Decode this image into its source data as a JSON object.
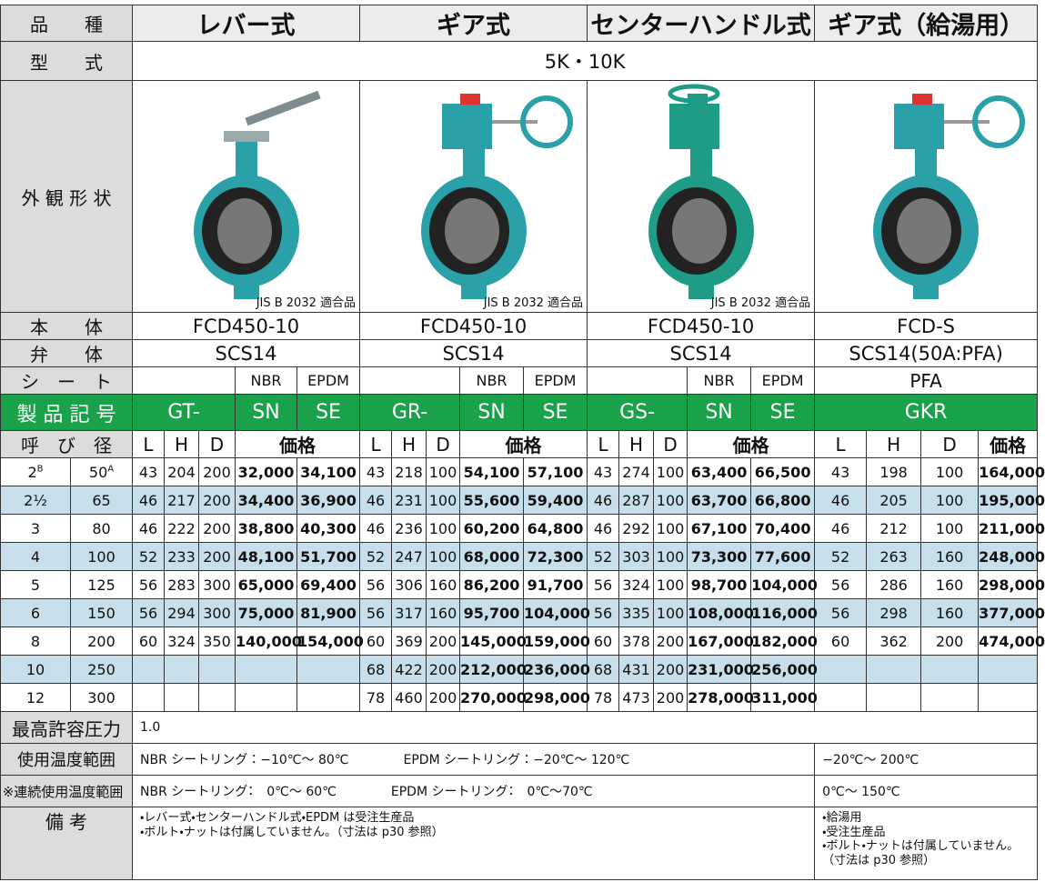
{
  "table": {
    "header": {
      "label": "品　　種",
      "groups": [
        "レバー式",
        "ギア式",
        "センターハンドル式",
        "ギア式（給湯用）"
      ]
    },
    "model": {
      "label": "型　　式",
      "value": "5K・10K"
    },
    "appearance": {
      "label": "外 観 形 状",
      "notes": [
        "JIS B 2032 適合品",
        "JIS B 2032 適合品",
        "JIS B 2032 適合品"
      ]
    },
    "body": {
      "label": "本　　体",
      "values": [
        "FCD450-10",
        "FCD450-10",
        "FCD450-10",
        "FCD-S"
      ]
    },
    "disc": {
      "label": "弁　　体",
      "values": [
        "SCS14",
        "SCS14",
        "SCS14",
        "SCS14(50A:PFA)"
      ]
    },
    "seat": {
      "label": "シ　ー　ト",
      "values": [
        [
          "NBR",
          "EPDM"
        ],
        [
          "NBR",
          "EPDM"
        ],
        [
          "NBR",
          "EPDM"
        ],
        [
          "PFA"
        ]
      ]
    },
    "code": {
      "label": "製 品 記 号",
      "values": [
        [
          "GT-",
          "SN",
          "SE"
        ],
        [
          "GR-",
          "SN",
          "SE"
        ],
        [
          "GS-",
          "SN",
          "SE"
        ],
        [
          "GKR"
        ]
      ]
    },
    "columns": {
      "label": "呼　び　径",
      "groups": [
        [
          "L",
          "H",
          "D",
          "価格"
        ],
        [
          "L",
          "H",
          "D",
          "価格"
        ],
        [
          "L",
          "H",
          "D",
          "価格"
        ],
        [
          "L",
          "H",
          "D",
          "価格"
        ]
      ]
    },
    "rows": [
      {
        "inch": "2",
        "inch_note": "B",
        "mm": "50",
        "mm_note": "A",
        "cells": [
          "43",
          "204",
          "200",
          "32,000",
          "34,100",
          "43",
          "218",
          "100",
          "54,100",
          "57,100",
          "43",
          "274",
          "100",
          "63,400",
          "66,500",
          "43",
          "198",
          "100",
          "164,000"
        ]
      },
      {
        "inch": "2½",
        "mm": "65",
        "cells": [
          "46",
          "217",
          "200",
          "34,400",
          "36,900",
          "46",
          "231",
          "100",
          "55,600",
          "59,400",
          "46",
          "287",
          "100",
          "63,700",
          "66,800",
          "46",
          "205",
          "100",
          "195,000"
        ]
      },
      {
        "inch": "3",
        "mm": "80",
        "cells": [
          "46",
          "222",
          "200",
          "38,800",
          "40,300",
          "46",
          "236",
          "100",
          "60,200",
          "64,800",
          "46",
          "292",
          "100",
          "67,100",
          "70,400",
          "46",
          "212",
          "100",
          "211,000"
        ]
      },
      {
        "inch": "4",
        "mm": "100",
        "cells": [
          "52",
          "233",
          "200",
          "48,100",
          "51,700",
          "52",
          "247",
          "100",
          "68,000",
          "72,300",
          "52",
          "303",
          "100",
          "73,300",
          "77,600",
          "52",
          "263",
          "160",
          "248,000"
        ]
      },
      {
        "inch": "5",
        "mm": "125",
        "cells": [
          "56",
          "283",
          "300",
          "65,000",
          "69,400",
          "56",
          "306",
          "160",
          "86,200",
          "91,700",
          "56",
          "324",
          "100",
          "98,700",
          "104,000",
          "56",
          "286",
          "160",
          "298,000"
        ]
      },
      {
        "inch": "6",
        "mm": "150",
        "cells": [
          "56",
          "294",
          "300",
          "75,000",
          "81,900",
          "56",
          "317",
          "160",
          "95,700",
          "104,000",
          "56",
          "335",
          "100",
          "108,000",
          "116,000",
          "56",
          "298",
          "160",
          "377,000"
        ]
      },
      {
        "inch": "8",
        "mm": "200",
        "cells": [
          "60",
          "324",
          "350",
          "140,000",
          "154,000",
          "60",
          "369",
          "200",
          "145,000",
          "159,000",
          "60",
          "378",
          "200",
          "167,000",
          "182,000",
          "60",
          "362",
          "200",
          "474,000"
        ]
      },
      {
        "inch": "10",
        "mm": "250",
        "cells": [
          null,
          null,
          null,
          null,
          null,
          "68",
          "422",
          "200",
          "212,000",
          "236,000",
          "68",
          "431",
          "200",
          "231,000",
          "256,000",
          null,
          null,
          null,
          null
        ]
      },
      {
        "inch": "12",
        "mm": "300",
        "cells": [
          null,
          null,
          null,
          null,
          null,
          "78",
          "460",
          "200",
          "270,000",
          "298,000",
          "78",
          "473",
          "200",
          "278,000",
          "311,000",
          null,
          null,
          null,
          null
        ]
      }
    ],
    "pressure": {
      "label": "最高許容圧力",
      "value": "1.0"
    },
    "temp": {
      "label": "使用温度範囲",
      "left": [
        "NBR シートリング：−10℃〜 80℃",
        "EPDM シートリング：−20℃〜 120℃"
      ],
      "right": "−20℃〜 200℃"
    },
    "cont_temp": {
      "mark": "※",
      "label": "連続使用温度範囲",
      "left": [
        "NBR シートリング：　0℃〜 60℃",
        "EPDM シートリング：　0℃〜70℃"
      ],
      "right": "0℃〜 150℃"
    },
    "remarks": {
      "label": "備 考",
      "left": [
        "・レバー式・センターハンドル式・EPDM は受注生産品",
        "・ボルト・ナットは付属していません。（寸法は p30 参照）"
      ],
      "right": [
        "・給湯用",
        "・受注生産品",
        "・ボルト・ナットは付属していません。（寸法は p30 参照）"
      ]
    }
  }
}
